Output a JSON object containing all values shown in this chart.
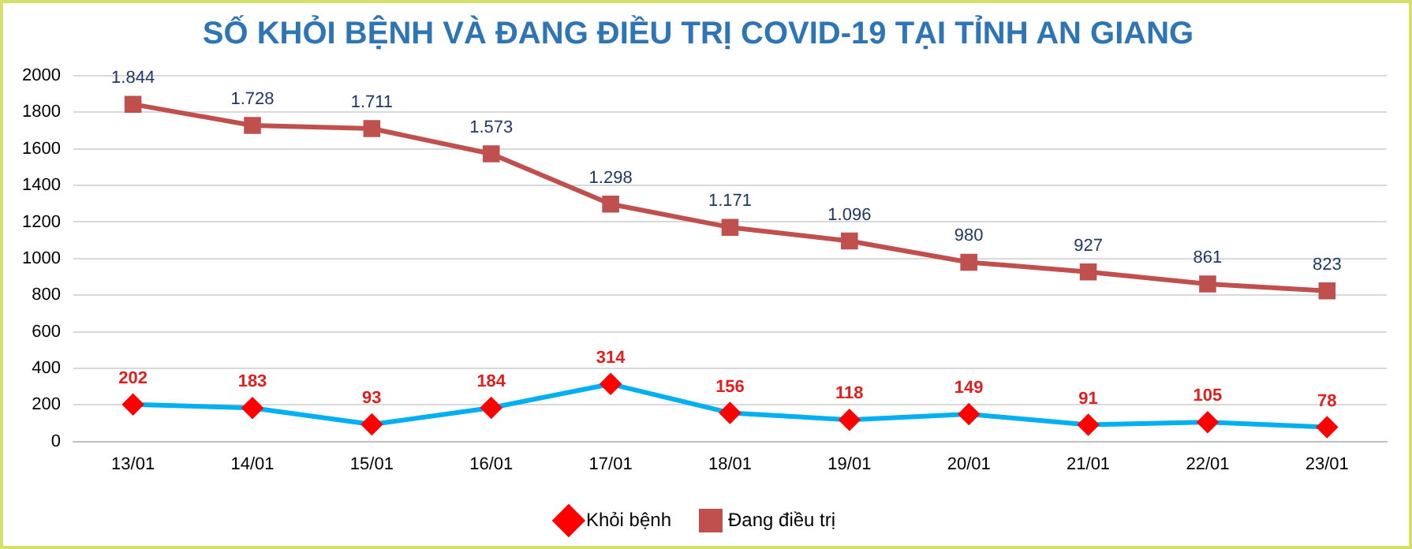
{
  "chart_data": {
    "type": "line",
    "title": "SỐ KHỎI BỆNH VÀ ĐANG ĐIỀU TRỊ COVID-19 TẠI TỈNH AN GIANG",
    "categories": [
      "13/01",
      "14/01",
      "15/01",
      "16/01",
      "17/01",
      "18/01",
      "19/01",
      "20/01",
      "21/01",
      "22/01",
      "23/01"
    ],
    "series": [
      {
        "name": "Khỏi bệnh",
        "color": "#00b0f0",
        "marker": "diamond",
        "colors": [
          "#ff0000",
          "#ff0000",
          "#ff0000",
          "#ff0000",
          "#ff0000",
          "#ff0000",
          "#ff0000",
          "#ff0000",
          "#ff0000",
          "#ff0000",
          "#ff0000"
        ],
        "values": [
          202,
          183,
          93,
          184,
          314,
          156,
          118,
          149,
          91,
          105,
          78
        ],
        "value_labels": [
          "202",
          "183",
          "93",
          "184",
          "314",
          "156",
          "118",
          "149",
          "91",
          "105",
          "78"
        ]
      },
      {
        "name": "Đang điều trị",
        "color": "#c0504d",
        "marker": "square",
        "values": [
          1844,
          1728,
          1711,
          1573,
          1298,
          1171,
          1096,
          980,
          927,
          861,
          823
        ],
        "value_labels": [
          "1.844",
          "1.728",
          "1.711",
          "1.573",
          "1.298",
          "1.171",
          "1.096",
          "980",
          "927",
          "861",
          "823"
        ]
      }
    ],
    "ylim": [
      0,
      2000
    ],
    "yticks": [
      0,
      200,
      400,
      600,
      800,
      1000,
      1200,
      1400,
      1600,
      1800,
      2000
    ],
    "grid": "y",
    "legend": "bottom",
    "line_style": "solid"
  }
}
